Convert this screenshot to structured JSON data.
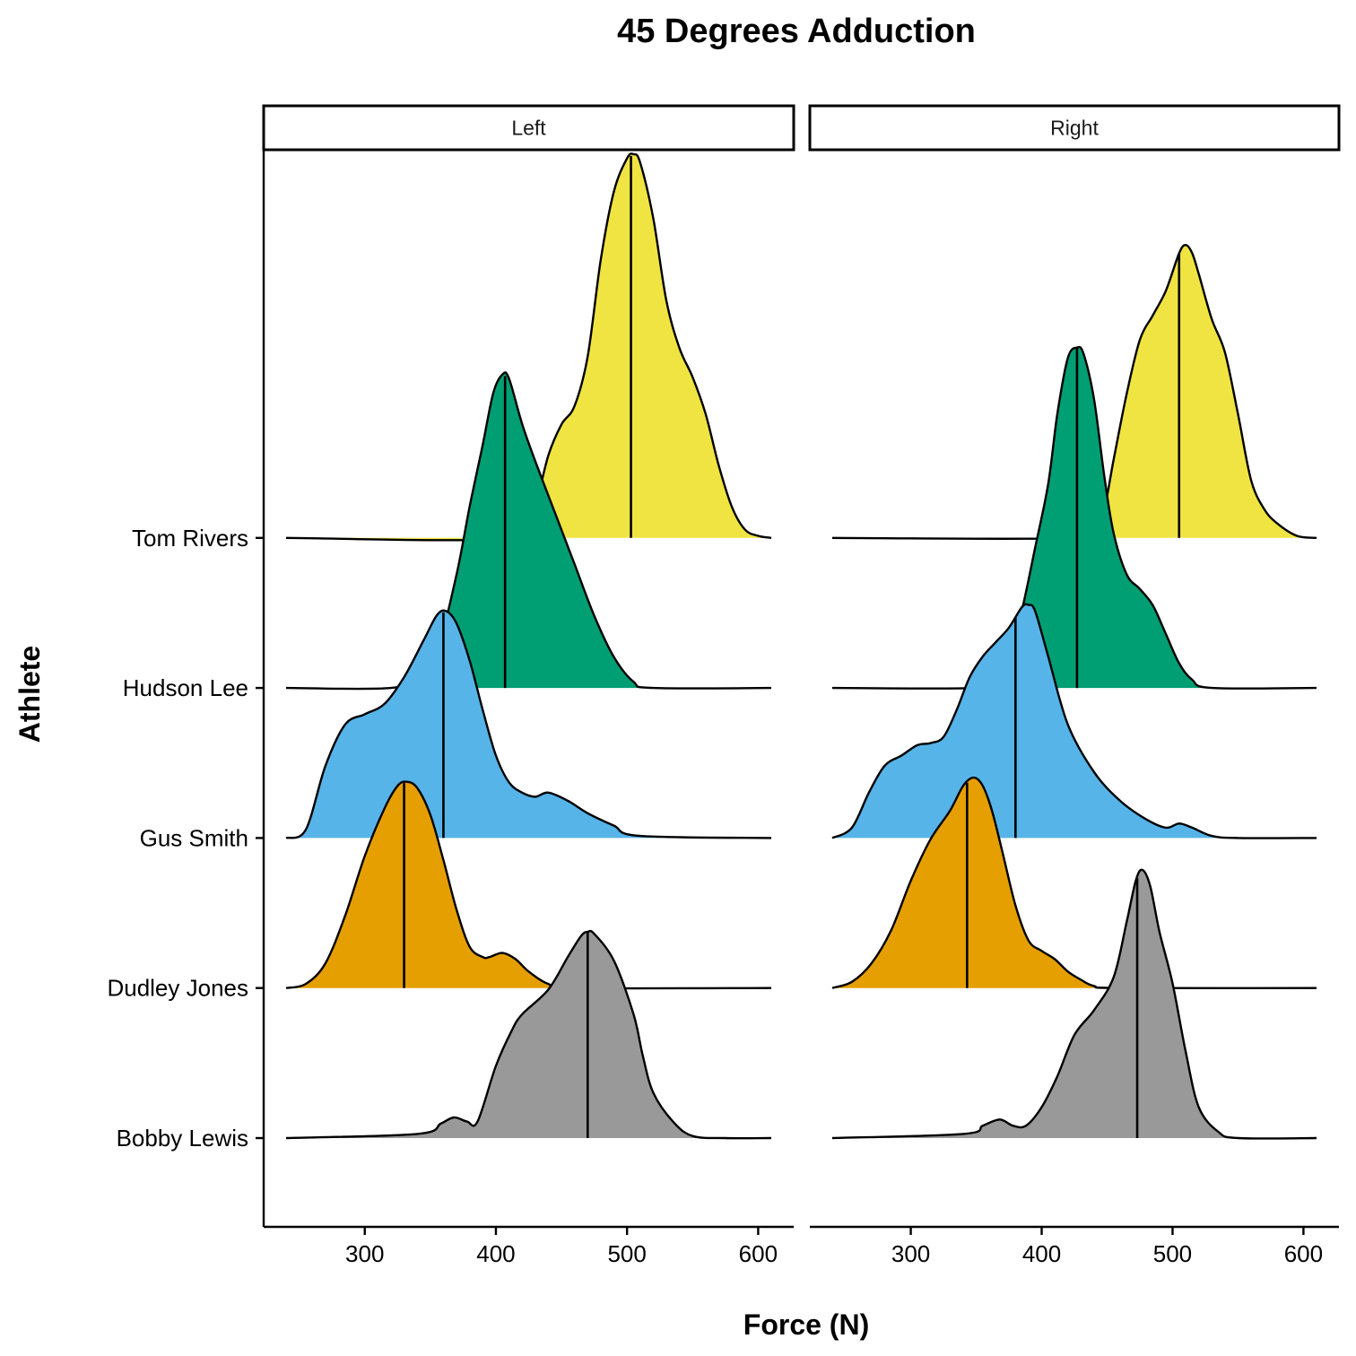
{
  "chart_data": {
    "type": "ridgeline",
    "title": "45 Degrees Adduction",
    "xlabel": "Force (N)",
    "ylabel": "Athlete",
    "xlim": [
      240,
      610
    ],
    "x_ticks": [
      300,
      400,
      500,
      600
    ],
    "y_order_bottom_to_top": [
      "Bobby Lewis",
      "Dudley Jones",
      "Gus Smith",
      "Hudson Lee",
      "Tom Rivers"
    ],
    "legend": "none",
    "grid": false,
    "facets": [
      {
        "label": "Left",
        "series": [
          {
            "athlete": "Bobby Lewis",
            "color": "#999999",
            "median": 470,
            "density_x": [
              240,
              340,
              358,
              368,
              378,
              386,
              400,
              412,
              420,
              440,
              455,
              465,
              470,
              475,
              490,
              505,
              512,
              520,
              535,
              550,
              575,
              610
            ],
            "density_y": [
              0,
              0.02,
              0.07,
              0.1,
              0.08,
              0.08,
              0.35,
              0.52,
              0.6,
              0.72,
              0.88,
              0.98,
              1.0,
              0.99,
              0.86,
              0.6,
              0.4,
              0.22,
              0.08,
              0.01,
              0,
              0
            ]
          },
          {
            "athlete": "Dudley Jones",
            "color": "#E69F00",
            "median": 330,
            "density_x": [
              240,
              255,
              270,
              285,
              300,
              315,
              325,
              332,
              340,
              350,
              360,
              370,
              380,
              390,
              395,
              405,
              415,
              425,
              440,
              460,
              610
            ],
            "density_y": [
              0,
              0.02,
              0.12,
              0.35,
              0.64,
              0.87,
              0.98,
              1.0,
              0.97,
              0.84,
              0.62,
              0.38,
              0.2,
              0.15,
              0.15,
              0.17,
              0.14,
              0.08,
              0.02,
              0,
              0
            ]
          },
          {
            "athlete": "Gus Smith",
            "color": "#56B4E9",
            "median": 360,
            "density_x": [
              240,
              255,
              270,
              285,
              300,
              315,
              330,
              345,
              355,
              362,
              370,
              380,
              390,
              400,
              410,
              420,
              430,
              440,
              455,
              470,
              490,
              510,
              610
            ],
            "density_y": [
              0,
              0.04,
              0.35,
              0.55,
              0.6,
              0.65,
              0.78,
              0.96,
              1.08,
              1.1,
              1.04,
              0.86,
              0.62,
              0.4,
              0.27,
              0.22,
              0.2,
              0.22,
              0.18,
              0.12,
              0.06,
              0.01,
              0
            ]
          },
          {
            "athlete": "Hudson Lee",
            "color": "#009E73",
            "median": 407,
            "density_x": [
              240,
              320,
              340,
              355,
              370,
              380,
              390,
              398,
              405,
              410,
              420,
              430,
              445,
              460,
              475,
              490,
              505,
              520,
              610
            ],
            "density_y": [
              0,
              0,
              0.06,
              0.18,
              0.55,
              0.88,
              1.18,
              1.43,
              1.52,
              1.5,
              1.28,
              1.1,
              0.85,
              0.6,
              0.35,
              0.15,
              0.03,
              0,
              0
            ]
          },
          {
            "athlete": "Tom Rivers",
            "color": "#F0E442",
            "median": 503,
            "density_x": [
              240,
              420,
              430,
              440,
              450,
              460,
              470,
              480,
              490,
              500,
              505,
              510,
              520,
              530,
              540,
              550,
              560,
              570,
              580,
              590,
              600,
              610
            ],
            "density_y": [
              0,
              0,
              0.15,
              0.4,
              0.55,
              0.64,
              0.88,
              1.35,
              1.68,
              1.84,
              1.86,
              1.82,
              1.55,
              1.15,
              0.92,
              0.78,
              0.6,
              0.35,
              0.15,
              0.04,
              0.01,
              0
            ]
          }
        ]
      },
      {
        "label": "Right",
        "series": [
          {
            "athlete": "Bobby Lewis",
            "color": "#999999",
            "median": 473,
            "density_x": [
              240,
              340,
              355,
              368,
              378,
              388,
              400,
              412,
              425,
              440,
              455,
              465,
              472,
              477,
              483,
              490,
              500,
              510,
              520,
              535,
              550,
              610
            ],
            "density_y": [
              0,
              0.02,
              0.06,
              0.09,
              0.06,
              0.06,
              0.15,
              0.3,
              0.5,
              0.62,
              0.78,
              1.05,
              1.25,
              1.3,
              1.22,
              1.0,
              0.75,
              0.42,
              0.15,
              0.03,
              0,
              0
            ]
          },
          {
            "athlete": "Dudley Jones",
            "color": "#E69F00",
            "median": 343,
            "density_x": [
              240,
              255,
              270,
              285,
              300,
              315,
              330,
              340,
              348,
              355,
              362,
              370,
              380,
              390,
              400,
              410,
              420,
              430,
              440,
              460,
              610
            ],
            "density_y": [
              0,
              0.03,
              0.12,
              0.28,
              0.52,
              0.72,
              0.86,
              0.98,
              1.02,
              0.98,
              0.86,
              0.66,
              0.4,
              0.23,
              0.18,
              0.14,
              0.08,
              0.04,
              0.01,
              0,
              0
            ]
          },
          {
            "athlete": "Gus Smith",
            "color": "#56B4E9",
            "median": 380,
            "density_x": [
              240,
              255,
              268,
              280,
              293,
              305,
              315,
              325,
              335,
              345,
              355,
              365,
              375,
              385,
              390,
              395,
              405,
              420,
              440,
              460,
              480,
              495,
              505,
              515,
              530,
              550,
              610
            ],
            "density_y": [
              0,
              0.05,
              0.22,
              0.35,
              0.4,
              0.45,
              0.46,
              0.49,
              0.62,
              0.78,
              0.88,
              0.95,
              1.02,
              1.12,
              1.13,
              1.1,
              0.88,
              0.55,
              0.32,
              0.18,
              0.09,
              0.05,
              0.07,
              0.05,
              0.01,
              0,
              0
            ]
          },
          {
            "athlete": "Hudson Lee",
            "color": "#009E73",
            "median": 427,
            "density_x": [
              240,
              350,
              365,
              375,
              385,
              395,
              405,
              412,
              420,
              427,
              432,
              440,
              448,
              455,
              465,
              475,
              485,
              495,
              505,
              515,
              530,
              610
            ],
            "density_y": [
              0,
              0,
              0.04,
              0.16,
              0.38,
              0.68,
              0.99,
              1.33,
              1.6,
              1.65,
              1.62,
              1.4,
              1.02,
              0.75,
              0.55,
              0.48,
              0.4,
              0.26,
              0.12,
              0.04,
              0,
              0
            ]
          },
          {
            "athlete": "Tom Rivers",
            "color": "#F0E442",
            "median": 505,
            "density_x": [
              240,
              430,
              440,
              448,
              455,
              465,
              475,
              485,
              495,
              505,
              510,
              515,
              520,
              530,
              540,
              550,
              560,
              570,
              580,
              595,
              610
            ],
            "density_y": [
              0,
              0,
              0.06,
              0.15,
              0.38,
              0.7,
              0.96,
              1.08,
              1.2,
              1.38,
              1.42,
              1.38,
              1.28,
              1.06,
              0.9,
              0.6,
              0.28,
              0.14,
              0.07,
              0.01,
              0
            ]
          }
        ]
      }
    ]
  }
}
